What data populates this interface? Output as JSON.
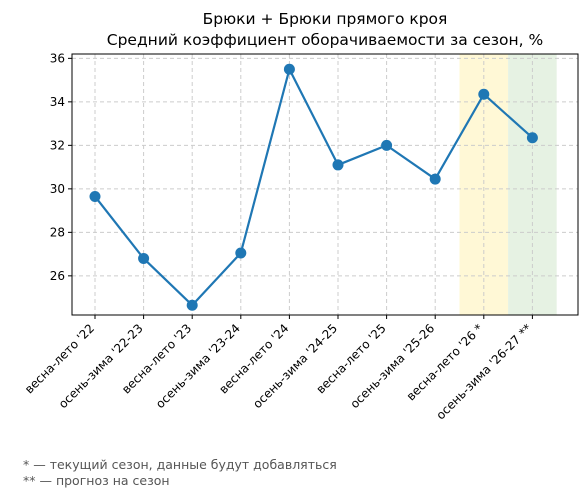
{
  "chart_data": {
    "type": "line",
    "title": "Брюки + Брюки прямого кроя",
    "subtitle": "Средний коэффициент оборачиваемости за сезон, %",
    "xlabel": "",
    "ylabel": "",
    "categories": [
      "весна-лето '22",
      "осень-зима '22-23",
      "весна-лето '23",
      "осень-зима '23-24",
      "весна-лето '24",
      "осень-зима '24-25",
      "весна-лето '25",
      "осень-зима '25-26",
      "весна-лето '26 *",
      "осень-зима '26-27 **"
    ],
    "values": [
      29.65,
      26.8,
      24.65,
      27.05,
      35.5,
      31.1,
      32.0,
      30.45,
      34.35,
      32.35
    ],
    "ylim": [
      24.2,
      36.2
    ],
    "yticks": [
      26,
      28,
      30,
      32,
      34,
      36
    ],
    "grid": true,
    "line_color": "#1f77b4",
    "highlights": [
      {
        "category": "весна-лето '26 *",
        "color": "#fff8d6"
      },
      {
        "category": "осень-зима '26-27 **",
        "color": "#e6f2e3"
      }
    ]
  },
  "footnotes": [
    "* — текущий сезон, данные будут добавляться",
    "** — прогноз на сезон"
  ]
}
